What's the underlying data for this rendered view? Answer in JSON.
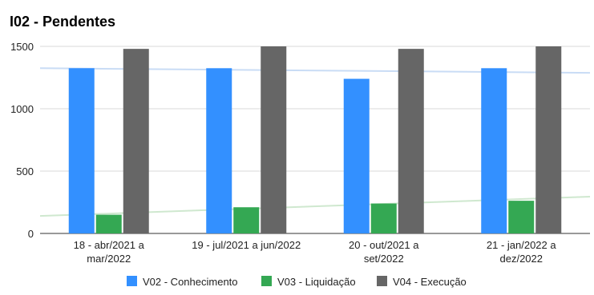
{
  "chart_data": {
    "type": "bar",
    "title": "I02 - Pendentes",
    "categories": [
      [
        "18 - abr/2021 a",
        "mar/2022"
      ],
      [
        "19 - jul/2021 a jun/2022"
      ],
      [
        "20 - out/2021 a",
        "set/2022"
      ],
      [
        "21 - jan/2022 a",
        "dez/2022"
      ]
    ],
    "series": [
      {
        "name": "V02 - Conhecimento",
        "color": "#3390ff",
        "values": [
          1325,
          1325,
          1240,
          1325
        ]
      },
      {
        "name": "V03 - Liquidação",
        "color": "#34a853",
        "values": [
          150,
          210,
          240,
          262
        ]
      },
      {
        "name": "V04 - Execução",
        "color": "#666666",
        "values": [
          1480,
          1500,
          1480,
          1500
        ]
      }
    ],
    "trendlines": [
      {
        "series": "V02 - Conhecimento",
        "color": "#c9dcf5",
        "start": 1325,
        "end": 1288
      },
      {
        "series": "V03 - Liquidação",
        "color": "#cfe8cf",
        "start": 140,
        "end": 295
      }
    ],
    "yticks": [
      0,
      500,
      1000,
      1500
    ],
    "ylim": [
      0,
      1500
    ],
    "xlabel": "",
    "ylabel": "",
    "grid": true,
    "legend_position": "bottom"
  }
}
